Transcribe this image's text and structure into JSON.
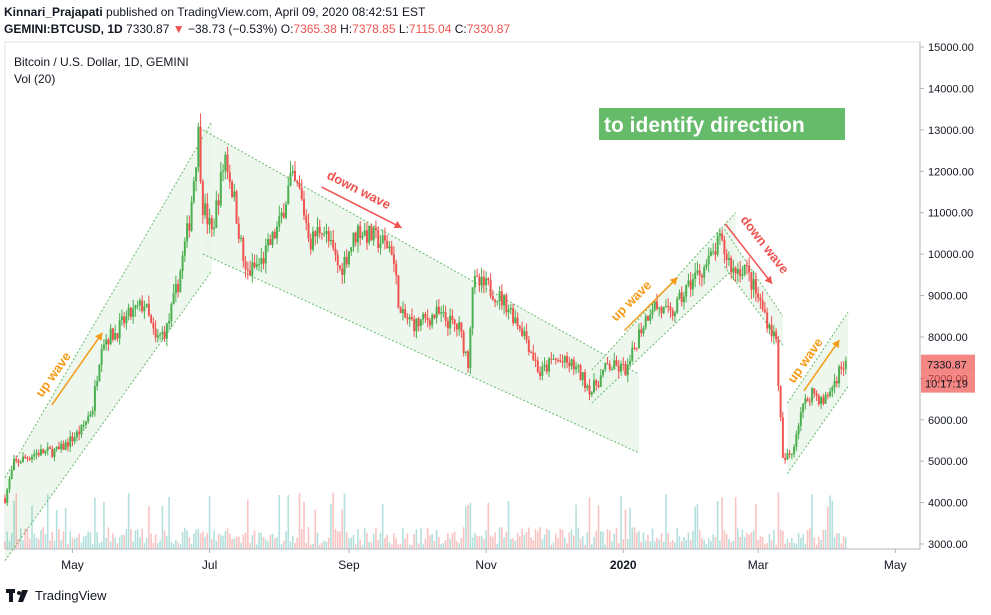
{
  "header": {
    "author": "Kinnari_Prajapati",
    "published": "published on TradingView.com, April 09, 2020 08:42:51 EST",
    "symbol": "GEMINI:BTCUSD, 1D",
    "last": "7330.87",
    "arrow": "▼",
    "change": "−38.73 (−0.53%)",
    "o_label": "O:",
    "o": "7365.38",
    "h_label": "H:",
    "h": "7378.85",
    "l_label": "L:",
    "l": "7115.04",
    "c_label": "C:",
    "c": "7330.87"
  },
  "legend": {
    "title": "Bitcoin / U.S. Dollar, 1D, GEMINI",
    "vol": "Vol (20)"
  },
  "footer": {
    "brand": "TradingView"
  },
  "colors": {
    "up": "#26a69a",
    "up_candle": "#4caf50",
    "down": "#ef5350",
    "channel_fill": "#e8f5e9",
    "note_bg": "#66bb6a",
    "orange": "#f59b17"
  },
  "chart_data": {
    "type": "candlestick",
    "y_axis": {
      "min": 3000,
      "max": 15000,
      "ticks": [
        "15000.00",
        "14000.00",
        "13000.00",
        "12000.00",
        "11000.00",
        "10000.00",
        "9000.00",
        "8000.00",
        "7000.00",
        "6000.00",
        "5000.00",
        "4000.00",
        "3000.00"
      ]
    },
    "x_axis": {
      "labels": [
        "May",
        "Jul",
        "Sep",
        "Nov",
        "2020",
        "Mar",
        "May"
      ],
      "label_dates": [
        "2019-05-01",
        "2019-07-01",
        "2019-09-01",
        "2019-11-01",
        "2020-01-01",
        "2020-03-01",
        "2020-05-01"
      ],
      "range": [
        "2019-04-01",
        "2020-05-12"
      ]
    },
    "price_tag": {
      "value": "7330.87",
      "countdown": "10:17:19"
    },
    "close_path": [
      [
        "2019-04-01",
        4100
      ],
      [
        "2019-04-05",
        4950
      ],
      [
        "2019-04-15",
        5200
      ],
      [
        "2019-04-25",
        5250
      ],
      [
        "2019-05-05",
        5750
      ],
      [
        "2019-05-10",
        6300
      ],
      [
        "2019-05-14",
        7900
      ],
      [
        "2019-05-20",
        8100
      ],
      [
        "2019-05-26",
        8500
      ],
      [
        "2019-06-02",
        8800
      ],
      [
        "2019-06-07",
        7900
      ],
      [
        "2019-06-12",
        8200
      ],
      [
        "2019-06-17",
        9300
      ],
      [
        "2019-06-22",
        10800
      ],
      [
        "2019-06-26",
        12900
      ],
      [
        "2019-06-28",
        11200
      ],
      [
        "2019-07-02",
        10500
      ],
      [
        "2019-07-08",
        12400
      ],
      [
        "2019-07-12",
        11300
      ],
      [
        "2019-07-17",
        9500
      ],
      [
        "2019-07-24",
        9800
      ],
      [
        "2019-08-01",
        10700
      ],
      [
        "2019-08-06",
        11800
      ],
      [
        "2019-08-10",
        11500
      ],
      [
        "2019-08-15",
        10300
      ],
      [
        "2019-08-20",
        10700
      ],
      [
        "2019-08-28",
        9600
      ],
      [
        "2019-09-05",
        10600
      ],
      [
        "2019-09-15",
        10300
      ],
      [
        "2019-09-20",
        10150
      ],
      [
        "2019-09-24",
        8500
      ],
      [
        "2019-10-01",
        8300
      ],
      [
        "2019-10-10",
        8550
      ],
      [
        "2019-10-20",
        8200
      ],
      [
        "2019-10-24",
        7400
      ],
      [
        "2019-10-26",
        9300
      ],
      [
        "2019-11-02",
        9200
      ],
      [
        "2019-11-10",
        8800
      ],
      [
        "2019-11-18",
        8100
      ],
      [
        "2019-11-25",
        7100
      ],
      [
        "2019-12-01",
        7450
      ],
      [
        "2019-12-10",
        7300
      ],
      [
        "2019-12-18",
        6700
      ],
      [
        "2019-12-25",
        7300
      ],
      [
        "2020-01-03",
        7200
      ],
      [
        "2020-01-08",
        8100
      ],
      [
        "2020-01-14",
        8800
      ],
      [
        "2020-01-22",
        8500
      ],
      [
        "2020-02-01",
        9400
      ],
      [
        "2020-02-08",
        9800
      ],
      [
        "2020-02-13",
        10300
      ],
      [
        "2020-02-19",
        9600
      ],
      [
        "2020-02-24",
        9700
      ],
      [
        "2020-03-02",
        8800
      ],
      [
        "2020-03-09",
        7900
      ],
      [
        "2020-03-12",
        5000
      ],
      [
        "2020-03-16",
        5200
      ],
      [
        "2020-03-20",
        6200
      ],
      [
        "2020-03-25",
        6700
      ],
      [
        "2020-03-30",
        6400
      ],
      [
        "2020-04-03",
        6800
      ],
      [
        "2020-04-07",
        7300
      ],
      [
        "2020-04-09",
        7330.87
      ]
    ],
    "annotations": [
      {
        "text": "to identify directiion",
        "kind": "note"
      },
      {
        "text": "up wave",
        "kind": "label",
        "color": "orange"
      },
      {
        "text": "down wave",
        "kind": "label",
        "color": "red"
      },
      {
        "text": "up wave",
        "kind": "label",
        "color": "orange"
      },
      {
        "text": "down wave",
        "kind": "label",
        "color": "red"
      },
      {
        "text": "up wave",
        "kind": "label",
        "color": "orange"
      }
    ],
    "channels": [
      {
        "type": "up",
        "upper": [
          [
            "2019-04-01",
            4600
          ],
          [
            "2019-07-02",
            13200
          ]
        ],
        "lower": [
          [
            "2019-04-01",
            2600
          ],
          [
            "2019-07-02",
            9600
          ]
        ]
      },
      {
        "type": "down",
        "upper": [
          [
            "2019-06-28",
            13000
          ],
          [
            "2020-01-08",
            7100
          ]
        ],
        "lower": [
          [
            "2019-06-28",
            10000
          ],
          [
            "2020-01-08",
            5200
          ]
        ]
      },
      {
        "type": "up",
        "upper": [
          [
            "2019-12-18",
            7200
          ],
          [
            "2020-02-20",
            11000
          ]
        ],
        "lower": [
          [
            "2019-12-18",
            6400
          ],
          [
            "2020-02-20",
            9700
          ]
        ]
      },
      {
        "type": "down",
        "upper": [
          [
            "2020-02-15",
            10600
          ],
          [
            "2020-03-12",
            8500
          ]
        ],
        "lower": [
          [
            "2020-02-15",
            9700
          ],
          [
            "2020-03-12",
            7800
          ]
        ]
      },
      {
        "type": "up",
        "upper": [
          [
            "2020-03-14",
            6400
          ],
          [
            "2020-04-10",
            8600
          ]
        ],
        "lower": [
          [
            "2020-03-14",
            4700
          ],
          [
            "2020-04-10",
            6800
          ]
        ]
      }
    ]
  }
}
